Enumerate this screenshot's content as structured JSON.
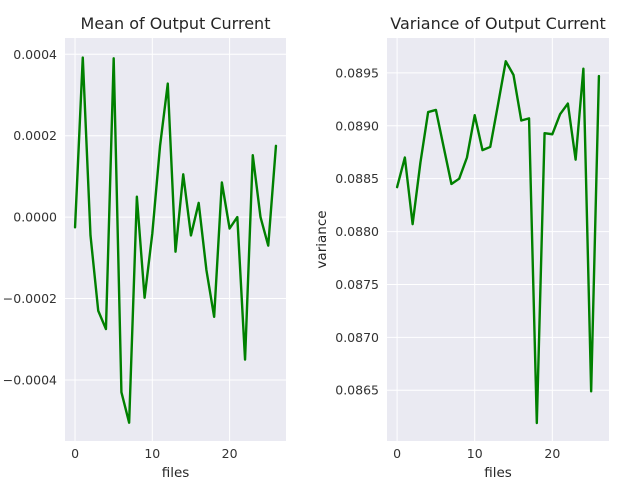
{
  "chart_data": [
    {
      "type": "line",
      "title": "Mean of Output Current",
      "xlabel": "files",
      "ylabel": "",
      "xlim": [
        -1.3,
        27.3
      ],
      "ylim": [
        -0.00055,
        0.00044
      ],
      "xticks": [
        0,
        10,
        20
      ],
      "xtick_labels": [
        "0",
        "10",
        "20"
      ],
      "yticks": [
        -0.0004,
        -0.0002,
        0.0,
        0.0002,
        0.0004
      ],
      "ytick_labels": [
        "−0.0004",
        "−0.0002",
        "0.0000",
        "0.0002",
        "0.0004"
      ],
      "grid": true,
      "color": "#008000",
      "x": [
        0,
        1,
        2,
        3,
        4,
        5,
        6,
        7,
        8,
        9,
        10,
        11,
        12,
        13,
        14,
        15,
        16,
        17,
        18,
        19,
        20,
        21,
        22,
        23,
        24,
        25,
        26
      ],
      "series": [
        {
          "values": [
            -2.5e-05,
            0.000392,
            -4.5e-05,
            -0.00023,
            -0.000275,
            0.00039,
            -0.00043,
            -0.000505,
            5e-05,
            -0.000198,
            -4e-05,
            0.000175,
            0.000328,
            -8.5e-05,
            0.000105,
            -4.5e-05,
            3.5e-05,
            -0.00013,
            -0.000245,
            8.5e-05,
            -2.8e-05,
            0.0,
            -0.00035,
            0.000152,
            0.0,
            -7e-05,
            0.000175
          ]
        }
      ]
    },
    {
      "type": "line",
      "title": "Variance of Output Current",
      "xlabel": "files",
      "ylabel": "variance",
      "xlim": [
        -1.3,
        27.3
      ],
      "ylim": [
        0.08602,
        0.08983
      ],
      "xticks": [
        0,
        10,
        20
      ],
      "xtick_labels": [
        "0",
        "10",
        "20"
      ],
      "yticks": [
        0.0865,
        0.087,
        0.0875,
        0.088,
        0.0885,
        0.089,
        0.0895
      ],
      "ytick_labels": [
        "0.0865",
        "0.0870",
        "0.0875",
        "0.0880",
        "0.0885",
        "0.0890",
        "0.0895"
      ],
      "grid": true,
      "color": "#008000",
      "x": [
        0,
        1,
        2,
        3,
        4,
        5,
        6,
        7,
        8,
        9,
        10,
        11,
        12,
        13,
        14,
        15,
        16,
        17,
        18,
        19,
        20,
        21,
        22,
        23,
        24,
        25,
        26
      ],
      "series": [
        {
          "values": [
            0.08842,
            0.0887,
            0.08807,
            0.08865,
            0.08913,
            0.08915,
            0.0888,
            0.08845,
            0.0885,
            0.0887,
            0.0891,
            0.08877,
            0.0888,
            0.0892,
            0.08961,
            0.08948,
            0.08905,
            0.08907,
            0.08619,
            0.08893,
            0.08892,
            0.08911,
            0.08921,
            0.08868,
            0.08954,
            0.08649,
            0.08947
          ]
        }
      ]
    }
  ]
}
